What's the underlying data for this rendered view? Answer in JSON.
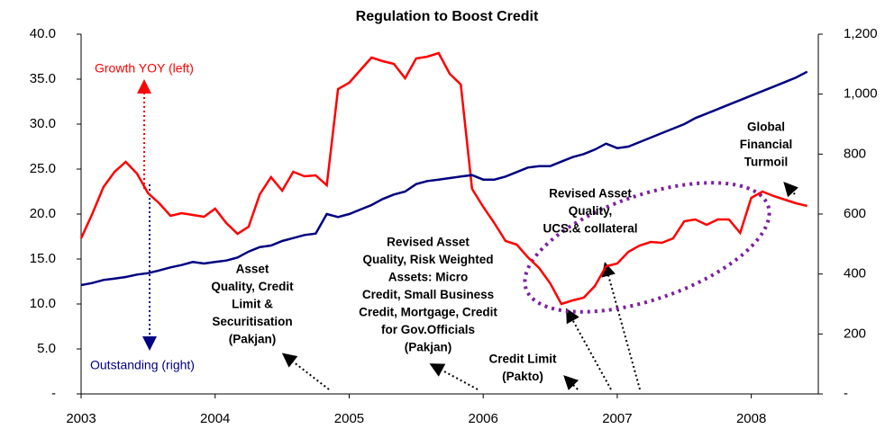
{
  "chart_data": {
    "type": "line",
    "title": "Regulation to Boost Credit",
    "x": [
      2003,
      2003.083,
      2003.167,
      2003.25,
      2003.333,
      2003.417,
      2003.5,
      2003.583,
      2003.667,
      2003.75,
      2003.833,
      2003.917,
      2004,
      2004.083,
      2004.167,
      2004.25,
      2004.333,
      2004.417,
      2004.5,
      2004.583,
      2004.667,
      2004.75,
      2004.833,
      2004.917,
      2005,
      2005.083,
      2005.167,
      2005.25,
      2005.333,
      2005.417,
      2005.5,
      2005.583,
      2005.667,
      2005.75,
      2005.833,
      2005.917,
      2006,
      2006.083,
      2006.167,
      2006.25,
      2006.333,
      2006.417,
      2006.5,
      2006.583,
      2006.667,
      2006.75,
      2006.833,
      2006.917,
      2007,
      2007.083,
      2007.167,
      2007.25,
      2007.333,
      2007.417,
      2007.5,
      2007.583,
      2007.667,
      2007.75,
      2007.833,
      2007.917,
      2008,
      2008.083,
      2008.167,
      2008.25,
      2008.333,
      2008.417
    ],
    "series": [
      {
        "name": "Growth YOY (left)",
        "color": "#ff0000",
        "axis": "y",
        "values": [
          17.3,
          20,
          23,
          24.7,
          25.8,
          24.5,
          22.3,
          21.2,
          19.8,
          20.1,
          19.9,
          19.7,
          20.6,
          19,
          17.8,
          18.6,
          22.2,
          24.1,
          22.6,
          24.7,
          24.2,
          24.3,
          23.2,
          33.9,
          34.6,
          36,
          37.4,
          37,
          36.7,
          35.1,
          37.3,
          37.5,
          37.9,
          35.6,
          34.4,
          22.8,
          20.8,
          19,
          17,
          16.6,
          15.2,
          14,
          12.3,
          10,
          10.4,
          10.7,
          12,
          14.2,
          14.5,
          15.8,
          16.5,
          16.9,
          16.8,
          17.3,
          19.2,
          19.4,
          18.8,
          19.4,
          19.4,
          17.9,
          21.8,
          22.5,
          22,
          21.6,
          21.2,
          20.9
        ]
      },
      {
        "name": "Outstanding (right)",
        "color": "#000080",
        "axis": "y2",
        "values": [
          363,
          370,
          380,
          385,
          390,
          398,
          403,
          412,
          422,
          430,
          440,
          435,
          440,
          445,
          455,
          475,
          490,
          495,
          510,
          520,
          530,
          535,
          600,
          590,
          600,
          615,
          630,
          650,
          665,
          675,
          700,
          710,
          715,
          720,
          725,
          730,
          715,
          715,
          725,
          740,
          755,
          760,
          760,
          775,
          790,
          800,
          815,
          835,
          820,
          825,
          840,
          855,
          870,
          885,
          900,
          920,
          935,
          950,
          965,
          980,
          995,
          1010,
          1025,
          1040,
          1055,
          1075
        ]
      }
    ],
    "xlim": [
      2003,
      2008.5
    ],
    "xticks": [
      2003,
      2004,
      2005,
      2006,
      2007,
      2008
    ],
    "ylim": [
      0,
      40
    ],
    "yticks": [
      {
        "value": 0,
        "label": "-"
      },
      {
        "value": 5,
        "label": "5.0"
      },
      {
        "value": 10,
        "label": "10.0"
      },
      {
        "value": 15,
        "label": "15.0"
      },
      {
        "value": 20,
        "label": "20.0"
      },
      {
        "value": 25,
        "label": "25.0"
      },
      {
        "value": 30,
        "label": "30.0"
      },
      {
        "value": 35,
        "label": "35.0"
      },
      {
        "value": 40,
        "label": "40.0"
      }
    ],
    "y2lim": [
      0,
      1200
    ],
    "y2ticks": [
      {
        "value": 0,
        "label": "-"
      },
      200,
      400,
      600,
      800,
      {
        "value": 1000,
        "label": "1,000"
      },
      {
        "value": 1200,
        "label": "1,200"
      }
    ],
    "annotations": [
      {
        "lines": [
          "Asset",
          "Quality, Credit",
          "Limit &",
          "Securitisation",
          "(Pakjan)"
        ]
      },
      {
        "lines": [
          "Revised Asset",
          "Quality, Risk Weighted",
          "Assets: Micro",
          "Credit, Small Business",
          "Credit, Mortgage, Credit",
          "for Gov.Officials",
          "(Pakjan)"
        ]
      },
      {
        "lines": [
          "Credit Limit",
          "(Pakto)"
        ]
      },
      {
        "lines": [
          "Revised Asset",
          "Quality,",
          "UCS.& collateral"
        ]
      },
      {
        "lines": [
          "Global",
          "Financial",
          "Turmoil"
        ]
      }
    ]
  }
}
